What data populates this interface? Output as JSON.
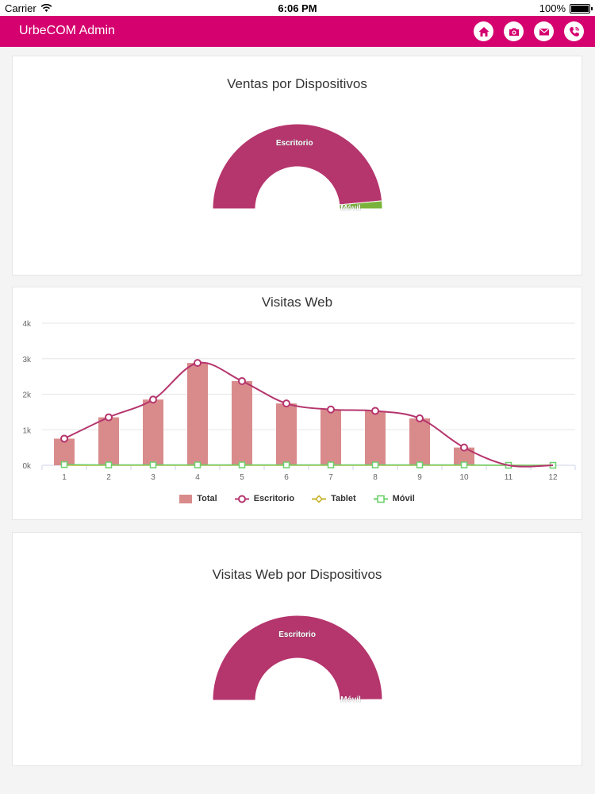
{
  "status_bar": {
    "carrier": "Carrier",
    "time": "6:06 PM",
    "battery": "100%"
  },
  "app_bar": {
    "title": "UrbeCOM Admin",
    "icons": [
      "home-icon",
      "camera-icon",
      "mail-icon",
      "phone-icon"
    ],
    "accent_color": "#d4016f"
  },
  "colors": {
    "escritorio": "#b5356d",
    "movil": "#7ab33b",
    "total_bar": "#d98b8b",
    "tablet": "#c8b533",
    "movil_line": "#6cd06c"
  },
  "chart_data": [
    {
      "type": "pie",
      "variant": "semi-donut",
      "title": "Ventas por Dispositivos",
      "slices": [
        {
          "name": "Escritorio",
          "value": 97
        },
        {
          "name": "Móvil",
          "value": 3
        }
      ]
    },
    {
      "type": "bar",
      "title": "Visitas Web",
      "categories": [
        "1",
        "2",
        "3",
        "4",
        "5",
        "6",
        "7",
        "8",
        "9",
        "10",
        "11",
        "12"
      ],
      "y_ticks": [
        "0k",
        "1k",
        "2k",
        "3k",
        "4k"
      ],
      "ylim": [
        0,
        4000
      ],
      "grid": true,
      "legend_position": "bottom",
      "series": [
        {
          "name": "Total",
          "kind": "bar",
          "values": [
            750,
            1350,
            1850,
            2880,
            2370,
            1740,
            1570,
            1530,
            1320,
            500,
            0,
            0
          ]
        },
        {
          "name": "Escritorio",
          "kind": "spline",
          "values": [
            750,
            1350,
            1850,
            2880,
            2370,
            1740,
            1570,
            1530,
            1320,
            500,
            0,
            0
          ]
        },
        {
          "name": "Tablet",
          "kind": "line",
          "values": [
            0,
            0,
            0,
            0,
            0,
            0,
            0,
            0,
            0,
            0,
            0,
            0
          ]
        },
        {
          "name": "Móvil",
          "kind": "line",
          "values": [
            20,
            10,
            10,
            10,
            10,
            10,
            10,
            10,
            10,
            10,
            0,
            0
          ]
        }
      ]
    },
    {
      "type": "pie",
      "variant": "semi-donut",
      "title": "Visitas Web por Dispositivos",
      "slices": [
        {
          "name": "Escritorio",
          "value": 99.7
        },
        {
          "name": "Móvil",
          "value": 0.3
        }
      ]
    }
  ]
}
